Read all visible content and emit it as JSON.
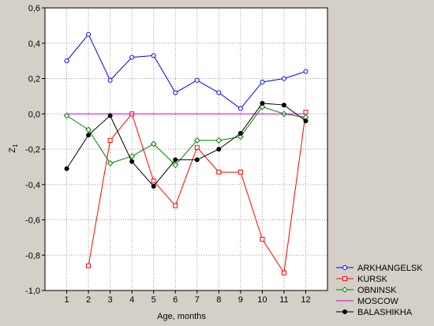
{
  "chart_data": {
    "type": "line",
    "title": "",
    "xlabel": "Age, months",
    "ylabel": "Z",
    "ylabel_subscript": "1",
    "x": [
      1,
      2,
      3,
      4,
      5,
      6,
      7,
      8,
      9,
      10,
      11,
      12
    ],
    "x_ticks": [
      "1",
      "2",
      "3",
      "4",
      "5",
      "6",
      "7",
      "8",
      "9",
      "10",
      "11",
      "12"
    ],
    "xlim": [
      0,
      13
    ],
    "ylim": [
      -1.0,
      0.6
    ],
    "y_ticks": [
      "-1,0",
      "-0,8",
      "-0,6",
      "-0,4",
      "-0,2",
      "0,0",
      "0,2",
      "0,4",
      "0,6"
    ],
    "y_tick_values": [
      -1.0,
      -0.8,
      -0.6,
      -0.4,
      -0.2,
      0.0,
      0.2,
      0.4,
      0.6
    ],
    "grid": true,
    "legend_position": "bottom-right, outside plot",
    "background_color": "#d4d0c8",
    "plot_background_color": "#ffffff",
    "series": [
      {
        "name": "ARKHANGELSK",
        "color": "#0000ff",
        "marker": "circle-open",
        "x": [
          1,
          2,
          3,
          4,
          5,
          6,
          7,
          8,
          9,
          10,
          11,
          12
        ],
        "values": [
          0.3,
          0.45,
          0.19,
          0.32,
          0.33,
          0.12,
          0.19,
          0.12,
          0.03,
          0.18,
          0.2,
          0.24
        ]
      },
      {
        "name": "KURSK",
        "color": "#ff0000",
        "marker": "square-open",
        "x": [
          2,
          3,
          4,
          5,
          6,
          7,
          8,
          9,
          10,
          11,
          12
        ],
        "values": [
          -0.86,
          -0.15,
          0.0,
          -0.38,
          -0.52,
          -0.19,
          -0.33,
          -0.33,
          -0.71,
          -0.9,
          0.01
        ]
      },
      {
        "name": "OBNINSK",
        "color": "#008000",
        "marker": "diamond-open",
        "x": [
          1,
          2,
          3,
          4,
          5,
          6,
          7,
          8,
          9,
          10,
          11,
          12
        ],
        "values": [
          -0.01,
          -0.09,
          -0.28,
          -0.24,
          -0.17,
          -0.29,
          -0.15,
          -0.15,
          -0.13,
          0.04,
          0.0,
          -0.02
        ]
      },
      {
        "name": "MOSCOW",
        "color": "#e000e0",
        "marker": "none",
        "x": [
          1,
          2,
          3,
          4,
          5,
          6,
          7,
          8,
          9,
          10,
          11,
          12
        ],
        "values": [
          0,
          0,
          0,
          0,
          0,
          0,
          0,
          0,
          0,
          0,
          0,
          0
        ]
      },
      {
        "name": "BALASHIKHA",
        "color": "#000000",
        "marker": "circle-filled",
        "x": [
          1,
          2,
          3,
          4,
          5,
          6,
          7,
          8,
          9,
          10,
          11,
          12
        ],
        "values": [
          -0.31,
          -0.12,
          -0.01,
          -0.27,
          -0.41,
          -0.26,
          -0.26,
          -0.2,
          -0.11,
          0.06,
          0.05,
          -0.04
        ]
      }
    ]
  }
}
